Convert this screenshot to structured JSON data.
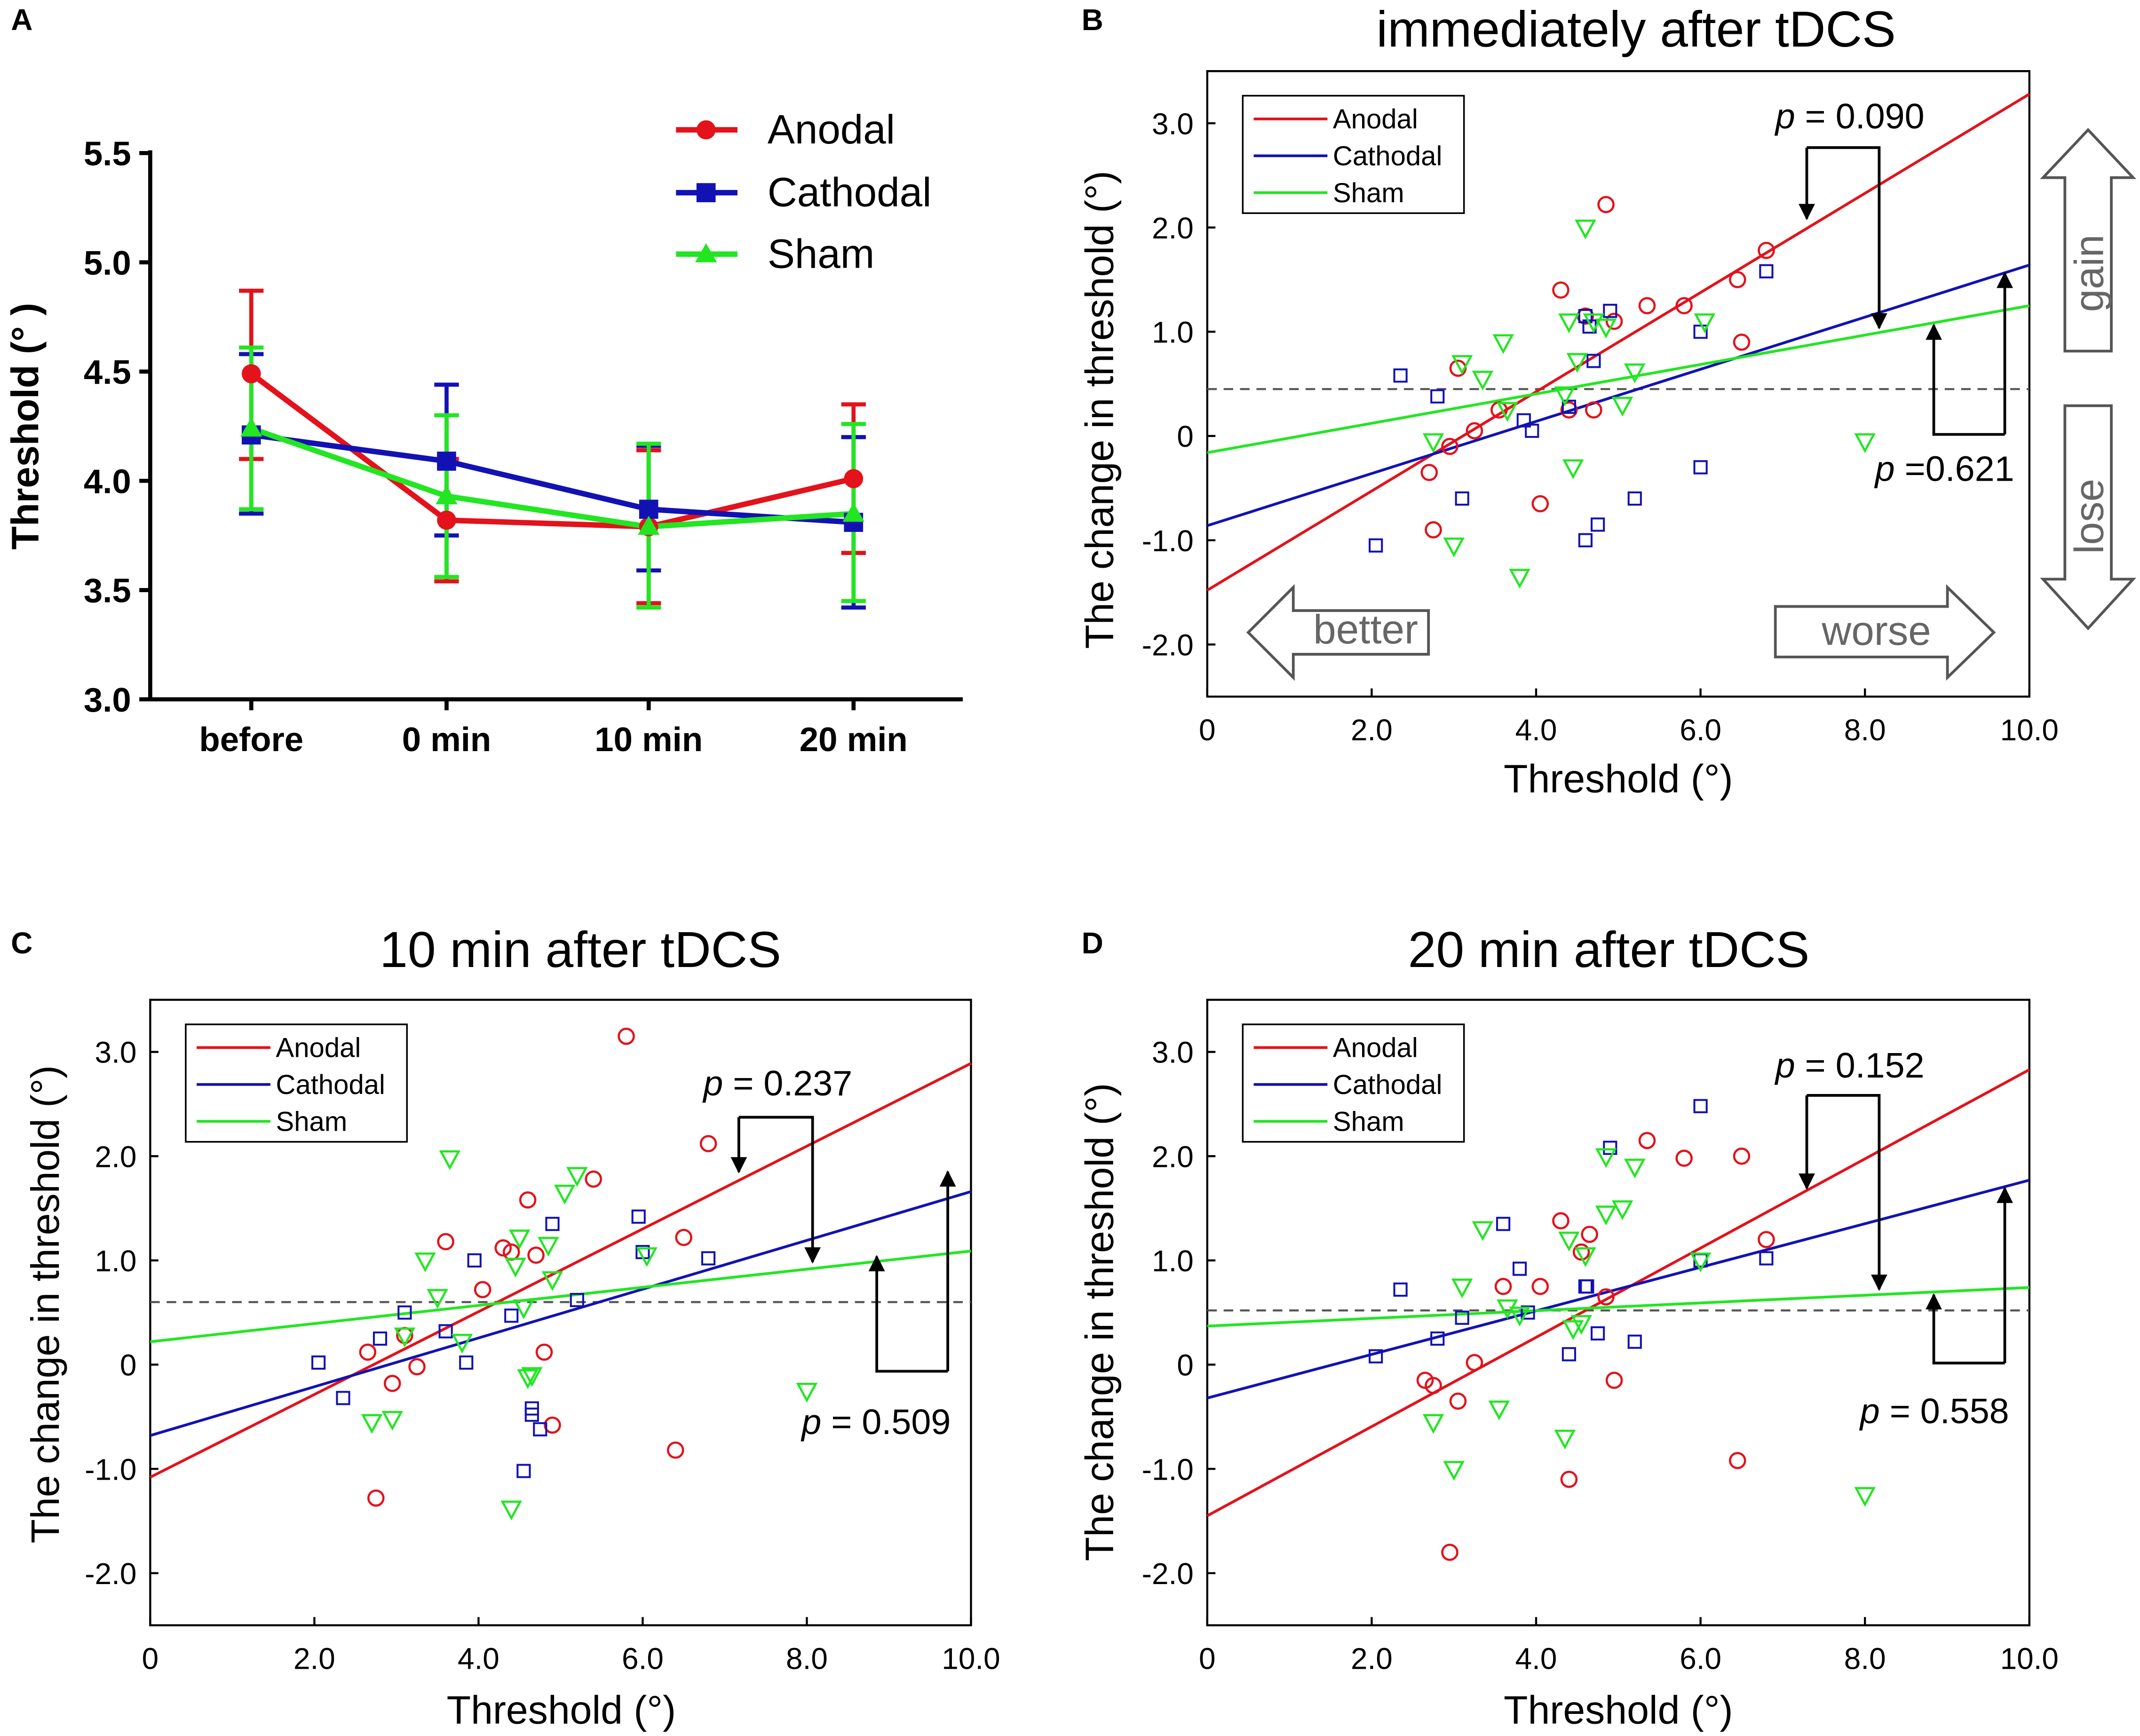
{
  "figure": {
    "colors": {
      "anodal": "#e3121b",
      "cathodal": "#1212b4",
      "sham": "#22e622",
      "text": "#000000",
      "arrow_gray": "#555555"
    }
  },
  "chart_data": [
    {
      "panel": "A",
      "type": "line",
      "title": "",
      "xlabel": "",
      "ylabel": "Threshold (° )",
      "categories": [
        "before",
        "0 min",
        "10 min",
        "20 min"
      ],
      "ylim": [
        3.0,
        5.5
      ],
      "yticks": [
        "3.0",
        "3.5",
        "4.0",
        "4.5",
        "5.0",
        "5.5"
      ],
      "legend_position": "top-right",
      "series": [
        {
          "name": "Anodal",
          "key": "anodal",
          "marker": "circle",
          "values": [
            4.49,
            3.82,
            3.79,
            4.01
          ],
          "err_upper": [
            4.87,
            4.1,
            4.14,
            4.35
          ],
          "err_lower": [
            4.1,
            3.54,
            3.44,
            3.67
          ]
        },
        {
          "name": "Cathodal",
          "key": "cathodal",
          "marker": "square",
          "values": [
            4.21,
            4.09,
            3.87,
            3.81
          ],
          "err_upper": [
            4.58,
            4.44,
            4.16,
            4.2
          ],
          "err_lower": [
            3.85,
            3.75,
            3.59,
            3.42
          ]
        },
        {
          "name": "Sham",
          "key": "sham",
          "marker": "triangle",
          "values": [
            4.24,
            3.93,
            3.79,
            3.85
          ],
          "err_upper": [
            4.61,
            4.3,
            4.17,
            4.26
          ],
          "err_lower": [
            3.87,
            3.56,
            3.42,
            3.45
          ]
        }
      ]
    },
    {
      "panel": "B",
      "type": "scatter",
      "title": "immediately after tDCS",
      "xlabel": "Threshold (°)",
      "ylabel": "The change in threshold (°)",
      "xlim": [
        0,
        10
      ],
      "ylim": [
        -2.5,
        3.5
      ],
      "xticks": [
        "0",
        "2.0",
        "4.0",
        "6.0",
        "8.0",
        "10.0"
      ],
      "yticks": [
        "-2.0",
        "-1.0",
        "0",
        "1.0",
        "2.0",
        "3.0"
      ],
      "hline": 0.45,
      "legend_position": "top-left",
      "legend": [
        "Anodal",
        "Cathodal",
        "Sham"
      ],
      "fits": {
        "anodal": {
          "intercept": -1.48,
          "slope": 0.476
        },
        "cathodal": {
          "intercept": -0.86,
          "slope": 0.25
        },
        "sham": {
          "intercept": -0.16,
          "slope": 0.141
        }
      },
      "p_values": [
        {
          "label_prefix": "p",
          "label_value": " = 0.090"
        },
        {
          "label_prefix": "p",
          "label_value": " =0.621"
        }
      ],
      "arrow_labels": {
        "gain": "gain",
        "lose": "lose",
        "better": "better",
        "worse": "worse"
      },
      "points": {
        "anodal": [
          [
            2.7,
            -0.35
          ],
          [
            2.75,
            -0.9
          ],
          [
            2.95,
            -0.1
          ],
          [
            3.05,
            0.65
          ],
          [
            3.25,
            0.05
          ],
          [
            3.55,
            0.25
          ],
          [
            4.05,
            -0.65
          ],
          [
            4.3,
            1.4
          ],
          [
            4.4,
            0.25
          ],
          [
            4.6,
            1.15
          ],
          [
            4.7,
            0.25
          ],
          [
            4.85,
            2.22
          ],
          [
            4.95,
            1.1
          ],
          [
            5.35,
            1.25
          ],
          [
            5.8,
            1.25
          ],
          [
            6.45,
            1.5
          ],
          [
            6.5,
            0.9
          ],
          [
            6.8,
            1.78
          ]
        ],
        "cathodal": [
          [
            2.05,
            -1.05
          ],
          [
            2.35,
            0.58
          ],
          [
            2.8,
            0.38
          ],
          [
            3.1,
            -0.6
          ],
          [
            3.85,
            0.15
          ],
          [
            3.95,
            0.05
          ],
          [
            4.4,
            0.28
          ],
          [
            4.6,
            1.15
          ],
          [
            4.6,
            -1.0
          ],
          [
            4.65,
            1.05
          ],
          [
            4.7,
            0.72
          ],
          [
            4.75,
            -0.85
          ],
          [
            4.9,
            1.2
          ],
          [
            5.2,
            -0.6
          ],
          [
            6.0,
            1.0
          ],
          [
            6.0,
            -0.3
          ],
          [
            6.8,
            1.58
          ]
        ],
        "sham": [
          [
            2.75,
            -0.05
          ],
          [
            3.0,
            -1.05
          ],
          [
            3.1,
            0.7
          ],
          [
            3.35,
            0.55
          ],
          [
            3.6,
            0.9
          ],
          [
            3.65,
            0.25
          ],
          [
            3.8,
            -1.35
          ],
          [
            4.35,
            0.4
          ],
          [
            4.4,
            1.1
          ],
          [
            4.45,
            -0.3
          ],
          [
            4.5,
            0.72
          ],
          [
            4.6,
            2.0
          ],
          [
            4.7,
            1.1
          ],
          [
            4.85,
            1.05
          ],
          [
            5.05,
            0.3
          ],
          [
            5.2,
            0.62
          ],
          [
            6.05,
            1.1
          ],
          [
            8.0,
            -0.05
          ]
        ]
      }
    },
    {
      "panel": "C",
      "type": "scatter",
      "title": "10 min after tDCS",
      "xlabel": "Threshold (°)",
      "ylabel": "The change in threshold (°)",
      "xlim": [
        0,
        10
      ],
      "ylim": [
        -2.5,
        3.5
      ],
      "xticks": [
        "0",
        "2.0",
        "4.0",
        "6.0",
        "8.0",
        "10.0"
      ],
      "yticks": [
        "-2.0",
        "-1.0",
        "0",
        "1.0",
        "2.0",
        "3.0"
      ],
      "hline": 0.6,
      "legend_position": "top-left",
      "legend": [
        "Anodal",
        "Cathodal",
        "Sham"
      ],
      "fits": {
        "anodal": {
          "intercept": -1.08,
          "slope": 0.397
        },
        "cathodal": {
          "intercept": -0.68,
          "slope": 0.234
        },
        "sham": {
          "intercept": 0.22,
          "slope": 0.087
        }
      },
      "p_values": [
        {
          "label_prefix": "p",
          "label_value": " = 0.237"
        },
        {
          "label_prefix": "p",
          "label_value": " = 0.509"
        }
      ],
      "points": {
        "anodal": [
          [
            2.65,
            0.12
          ],
          [
            2.75,
            -1.28
          ],
          [
            2.95,
            -0.18
          ],
          [
            3.1,
            0.28
          ],
          [
            3.25,
            -0.02
          ],
          [
            3.6,
            1.18
          ],
          [
            4.05,
            0.72
          ],
          [
            4.3,
            1.12
          ],
          [
            4.4,
            1.08
          ],
          [
            4.6,
            1.58
          ],
          [
            4.7,
            1.05
          ],
          [
            4.8,
            0.12
          ],
          [
            4.9,
            -0.58
          ],
          [
            5.4,
            1.78
          ],
          [
            5.8,
            3.15
          ],
          [
            6.4,
            -0.82
          ],
          [
            6.5,
            1.22
          ],
          [
            6.8,
            2.12
          ]
        ],
        "cathodal": [
          [
            2.05,
            0.02
          ],
          [
            2.35,
            -0.32
          ],
          [
            2.8,
            0.25
          ],
          [
            3.1,
            0.5
          ],
          [
            3.6,
            0.32
          ],
          [
            3.85,
            0.02
          ],
          [
            3.95,
            1.0
          ],
          [
            4.4,
            0.47
          ],
          [
            4.55,
            -1.02
          ],
          [
            4.65,
            -0.42
          ],
          [
            4.65,
            -0.48
          ],
          [
            4.75,
            -0.62
          ],
          [
            4.9,
            1.35
          ],
          [
            5.2,
            0.62
          ],
          [
            5.95,
            1.42
          ],
          [
            6.0,
            1.08
          ],
          [
            6.8,
            1.02
          ]
        ],
        "sham": [
          [
            2.7,
            -0.55
          ],
          [
            2.95,
            -0.52
          ],
          [
            3.1,
            0.28
          ],
          [
            3.35,
            1.0
          ],
          [
            3.5,
            0.65
          ],
          [
            3.65,
            1.98
          ],
          [
            3.8,
            0.22
          ],
          [
            4.4,
            -1.38
          ],
          [
            4.45,
            0.95
          ],
          [
            4.5,
            1.22
          ],
          [
            4.55,
            0.55
          ],
          [
            4.6,
            -0.12
          ],
          [
            4.65,
            -0.1
          ],
          [
            4.85,
            1.15
          ],
          [
            4.9,
            0.82
          ],
          [
            5.05,
            1.65
          ],
          [
            5.2,
            1.82
          ],
          [
            6.05,
            1.05
          ],
          [
            8.0,
            -0.25
          ]
        ]
      }
    },
    {
      "panel": "D",
      "type": "scatter",
      "title": "20 min after tDCS",
      "xlabel": "Threshold (°)",
      "ylabel": "The change in threshold (°)",
      "xlim": [
        0,
        10
      ],
      "ylim": [
        -2.5,
        3.5
      ],
      "xticks": [
        "0",
        "2.0",
        "4.0",
        "6.0",
        "8.0",
        "10.0"
      ],
      "yticks": [
        "-2.0",
        "-1.0",
        "0",
        "1.0",
        "2.0",
        "3.0"
      ],
      "hline": 0.52,
      "legend_position": "top-left",
      "legend": [
        "Anodal",
        "Cathodal",
        "Sham"
      ],
      "fits": {
        "anodal": {
          "intercept": -1.45,
          "slope": 0.428
        },
        "cathodal": {
          "intercept": -0.32,
          "slope": 0.209
        },
        "sham": {
          "intercept": 0.37,
          "slope": 0.037
        }
      },
      "p_values": [
        {
          "label_prefix": "p",
          "label_value": " = 0.152"
        },
        {
          "label_prefix": "p",
          "label_value": " = 0.558"
        }
      ],
      "points": {
        "anodal": [
          [
            2.65,
            -0.15
          ],
          [
            2.75,
            -0.2
          ],
          [
            2.95,
            -1.8
          ],
          [
            3.05,
            -0.35
          ],
          [
            3.25,
            0.02
          ],
          [
            3.6,
            0.75
          ],
          [
            4.05,
            0.75
          ],
          [
            4.3,
            1.38
          ],
          [
            4.4,
            -1.1
          ],
          [
            4.55,
            1.08
          ],
          [
            4.65,
            1.25
          ],
          [
            4.85,
            0.65
          ],
          [
            4.95,
            -0.15
          ],
          [
            5.35,
            2.15
          ],
          [
            5.8,
            1.98
          ],
          [
            6.45,
            -0.92
          ],
          [
            6.5,
            2.0
          ],
          [
            6.8,
            1.2
          ]
        ],
        "cathodal": [
          [
            2.05,
            0.08
          ],
          [
            2.35,
            0.72
          ],
          [
            2.8,
            0.25
          ],
          [
            3.1,
            0.45
          ],
          [
            3.6,
            1.35
          ],
          [
            3.8,
            0.92
          ],
          [
            3.9,
            0.5
          ],
          [
            4.4,
            0.1
          ],
          [
            4.6,
            0.75
          ],
          [
            4.62,
            0.75
          ],
          [
            4.75,
            0.3
          ],
          [
            4.9,
            2.08
          ],
          [
            5.2,
            0.22
          ],
          [
            6.0,
            2.48
          ],
          [
            6.0,
            1.0
          ],
          [
            6.8,
            1.02
          ]
        ],
        "sham": [
          [
            2.75,
            -0.55
          ],
          [
            3.0,
            -1.0
          ],
          [
            3.1,
            0.75
          ],
          [
            3.35,
            1.3
          ],
          [
            3.55,
            -0.42
          ],
          [
            3.65,
            0.55
          ],
          [
            3.8,
            0.48
          ],
          [
            4.35,
            -0.7
          ],
          [
            4.4,
            1.2
          ],
          [
            4.45,
            0.35
          ],
          [
            4.55,
            0.4
          ],
          [
            4.6,
            1.05
          ],
          [
            4.85,
            2.0
          ],
          [
            4.85,
            1.45
          ],
          [
            5.05,
            1.5
          ],
          [
            5.2,
            1.9
          ],
          [
            6.0,
            1.0
          ],
          [
            8.0,
            -1.25
          ]
        ]
      }
    }
  ]
}
